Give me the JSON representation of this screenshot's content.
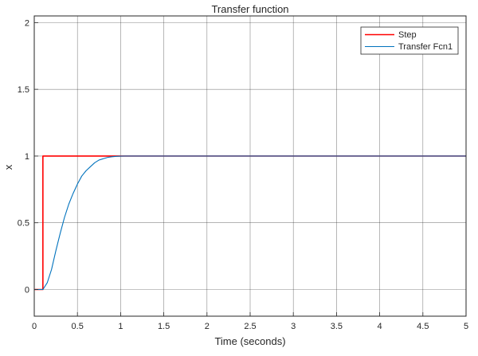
{
  "chart_data": {
    "type": "line",
    "title": "Transfer function",
    "xlabel": "Time (seconds)",
    "ylabel": "x",
    "xlim": [
      0,
      5
    ],
    "ylim": [
      -0.2,
      2.05
    ],
    "grid": true,
    "legend_position": "top-right",
    "x_ticks": [
      0,
      0.5,
      1,
      1.5,
      2,
      2.5,
      3,
      3.5,
      4,
      4.5,
      5
    ],
    "x_tick_labels": [
      "0",
      "0.5",
      "1",
      "1.5",
      "2",
      "2.5",
      "3",
      "3.5",
      "4",
      "4.5",
      "5"
    ],
    "y_ticks": [
      0,
      0.5,
      1,
      1.5,
      2
    ],
    "y_tick_labels": [
      "0",
      "0.5",
      "1",
      "1.5",
      "2"
    ],
    "series": [
      {
        "name": "Step",
        "color": "#ff0000",
        "x": [
          0,
          0.1,
          0.1,
          5
        ],
        "y": [
          0,
          0,
          1,
          1
        ]
      },
      {
        "name": "Transfer Fcn1",
        "color": "#0072bd",
        "x": [
          0,
          0.1,
          0.15,
          0.2,
          0.25,
          0.3,
          0.35,
          0.4,
          0.45,
          0.5,
          0.55,
          0.6,
          0.65,
          0.7,
          0.75,
          0.8,
          0.85,
          0.9,
          0.95,
          1.0,
          1.05,
          1.1,
          1.2,
          1.4,
          2,
          3,
          4,
          5
        ],
        "y": [
          0,
          0,
          0.05,
          0.15,
          0.29,
          0.42,
          0.54,
          0.64,
          0.72,
          0.79,
          0.85,
          0.89,
          0.92,
          0.95,
          0.97,
          0.98,
          0.99,
          0.995,
          0.998,
          0.999,
          1,
          1,
          1,
          1,
          1,
          1,
          1,
          1
        ]
      }
    ]
  }
}
